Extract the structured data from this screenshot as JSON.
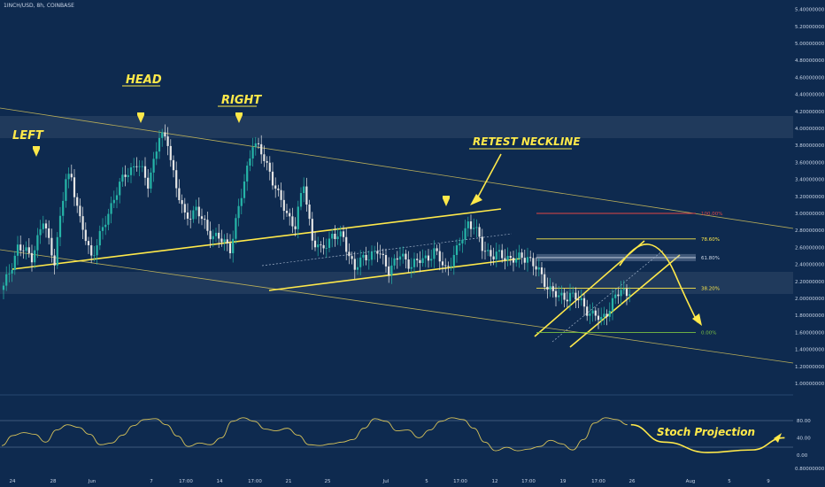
{
  "title": "1INCH/USD, 8h, COINBASE",
  "colors": {
    "background": "#0e2a4f",
    "up": "#26b5a8",
    "down": "#e6e6e6",
    "annotation": "#ffe94a",
    "fib_top": "#e04545",
    "fib_bottom": "#7ac043"
  },
  "annotations": {
    "left": "LEFT",
    "head": "HEAD",
    "right": "RIGHT",
    "retest": "RETEST NECKLINE",
    "stoch": "Stoch Projection"
  },
  "fib_labels": [
    "100.00%",
    "78.60%",
    "61.80%",
    "38.20%",
    "0.00%"
  ],
  "chart_data": {
    "type": "candlestick",
    "price_axis": {
      "ticks": [
        "5.40000000",
        "5.20000000",
        "5.00000000",
        "4.80000000",
        "4.60000000",
        "4.40000000",
        "4.20000000",
        "4.00000000",
        "3.80000000",
        "3.60000000",
        "3.40000000",
        "3.20000000",
        "3.00000000",
        "2.80000000",
        "2.60000000",
        "2.40000000",
        "2.20000000",
        "2.00000000",
        "1.80000000",
        "1.60000000",
        "1.40000000",
        "1.20000000",
        "1.00000000",
        "0.80000000"
      ],
      "values": [
        5.4,
        5.2,
        5.0,
        4.8,
        4.6,
        4.4,
        4.2,
        4.0,
        3.8,
        3.6,
        3.4,
        3.2,
        3.0,
        2.8,
        2.6,
        2.4,
        2.2,
        2.0,
        1.8,
        1.6,
        1.4,
        1.2,
        1.0,
        0.8
      ],
      "range": [
        0.75,
        5.45
      ]
    },
    "time_axis": {
      "labels": [
        "24",
        "28",
        "Jun",
        "7",
        "17:00",
        "14",
        "17:00",
        "21",
        "25",
        "Jul",
        "5",
        "17:00",
        "12",
        "17:00",
        "19",
        "17:00",
        "26",
        "Aug",
        "5",
        "9"
      ]
    },
    "stoch_axis": {
      "ticks": [
        "80.00",
        "40.00",
        "0.00"
      ],
      "values": [
        80,
        40,
        0
      ],
      "range": [
        -10,
        100
      ]
    },
    "close_anchors": [
      [
        0,
        2.12
      ],
      [
        5,
        2.6
      ],
      [
        10,
        2.5
      ],
      [
        14,
        2.9
      ],
      [
        18,
        2.45
      ],
      [
        22,
        3.4
      ],
      [
        24,
        3.45
      ],
      [
        27,
        2.9
      ],
      [
        31,
        2.5
      ],
      [
        35,
        2.8
      ],
      [
        39,
        3.2
      ],
      [
        43,
        3.45
      ],
      [
        47,
        3.6
      ],
      [
        51,
        3.35
      ],
      [
        55,
        3.9
      ],
      [
        58,
        3.85
      ],
      [
        61,
        3.3
      ],
      [
        64,
        2.95
      ],
      [
        68,
        3.05
      ],
      [
        72,
        2.8
      ],
      [
        76,
        2.7
      ],
      [
        80,
        2.6
      ],
      [
        84,
        3.2
      ],
      [
        88,
        3.85
      ],
      [
        91,
        3.7
      ],
      [
        94,
        3.5
      ],
      [
        97,
        3.2
      ],
      [
        100,
        3.0
      ],
      [
        103,
        2.85
      ],
      [
        106,
        3.35
      ],
      [
        109,
        2.7
      ],
      [
        112,
        2.55
      ],
      [
        116,
        2.75
      ],
      [
        120,
        2.7
      ],
      [
        124,
        2.35
      ],
      [
        128,
        2.5
      ],
      [
        132,
        2.55
      ],
      [
        136,
        2.35
      ],
      [
        140,
        2.5
      ],
      [
        144,
        2.4
      ],
      [
        148,
        2.45
      ],
      [
        152,
        2.55
      ],
      [
        156,
        2.35
      ],
      [
        160,
        2.55
      ],
      [
        164,
        2.9
      ],
      [
        166,
        2.85
      ],
      [
        169,
        2.6
      ],
      [
        173,
        2.5
      ],
      [
        177,
        2.5
      ],
      [
        181,
        2.45
      ],
      [
        185,
        2.5
      ],
      [
        188,
        2.35
      ],
      [
        192,
        2.15
      ],
      [
        196,
        2.0
      ],
      [
        200,
        2.05
      ],
      [
        204,
        1.95
      ],
      [
        208,
        1.8
      ],
      [
        211,
        1.75
      ],
      [
        214,
        1.9
      ],
      [
        218,
        2.1
      ],
      [
        221,
        2.05
      ]
    ],
    "fib_levels": [
      3.0,
      2.7,
      2.48,
      2.12,
      1.6
    ],
    "stoch_anchors": [
      [
        0,
        22
      ],
      [
        4,
        45
      ],
      [
        8,
        52
      ],
      [
        12,
        48
      ],
      [
        16,
        30
      ],
      [
        20,
        58
      ],
      [
        24,
        70
      ],
      [
        28,
        64
      ],
      [
        32,
        48
      ],
      [
        36,
        24
      ],
      [
        40,
        28
      ],
      [
        44,
        46
      ],
      [
        48,
        68
      ],
      [
        52,
        82
      ],
      [
        56,
        84
      ],
      [
        60,
        70
      ],
      [
        64,
        44
      ],
      [
        68,
        20
      ],
      [
        72,
        28
      ],
      [
        76,
        24
      ],
      [
        80,
        40
      ],
      [
        84,
        78
      ],
      [
        88,
        86
      ],
      [
        92,
        78
      ],
      [
        96,
        60
      ],
      [
        100,
        56
      ],
      [
        104,
        62
      ],
      [
        108,
        46
      ],
      [
        112,
        24
      ],
      [
        116,
        22
      ],
      [
        120,
        26
      ],
      [
        124,
        30
      ],
      [
        128,
        36
      ],
      [
        132,
        62
      ],
      [
        136,
        84
      ],
      [
        140,
        78
      ],
      [
        144,
        56
      ],
      [
        148,
        58
      ],
      [
        152,
        40
      ],
      [
        156,
        58
      ],
      [
        160,
        78
      ],
      [
        164,
        86
      ],
      [
        168,
        82
      ],
      [
        172,
        62
      ],
      [
        176,
        30
      ],
      [
        180,
        10
      ],
      [
        184,
        18
      ],
      [
        188,
        10
      ],
      [
        192,
        14
      ],
      [
        196,
        20
      ],
      [
        200,
        34
      ],
      [
        204,
        26
      ],
      [
        208,
        12
      ],
      [
        212,
        36
      ],
      [
        216,
        74
      ],
      [
        220,
        86
      ],
      [
        224,
        82
      ],
      [
        228,
        70
      ]
    ],
    "stoch_projection": [
      [
        228,
        70
      ],
      [
        240,
        30
      ],
      [
        256,
        6
      ],
      [
        272,
        12
      ],
      [
        284,
        40
      ]
    ]
  }
}
